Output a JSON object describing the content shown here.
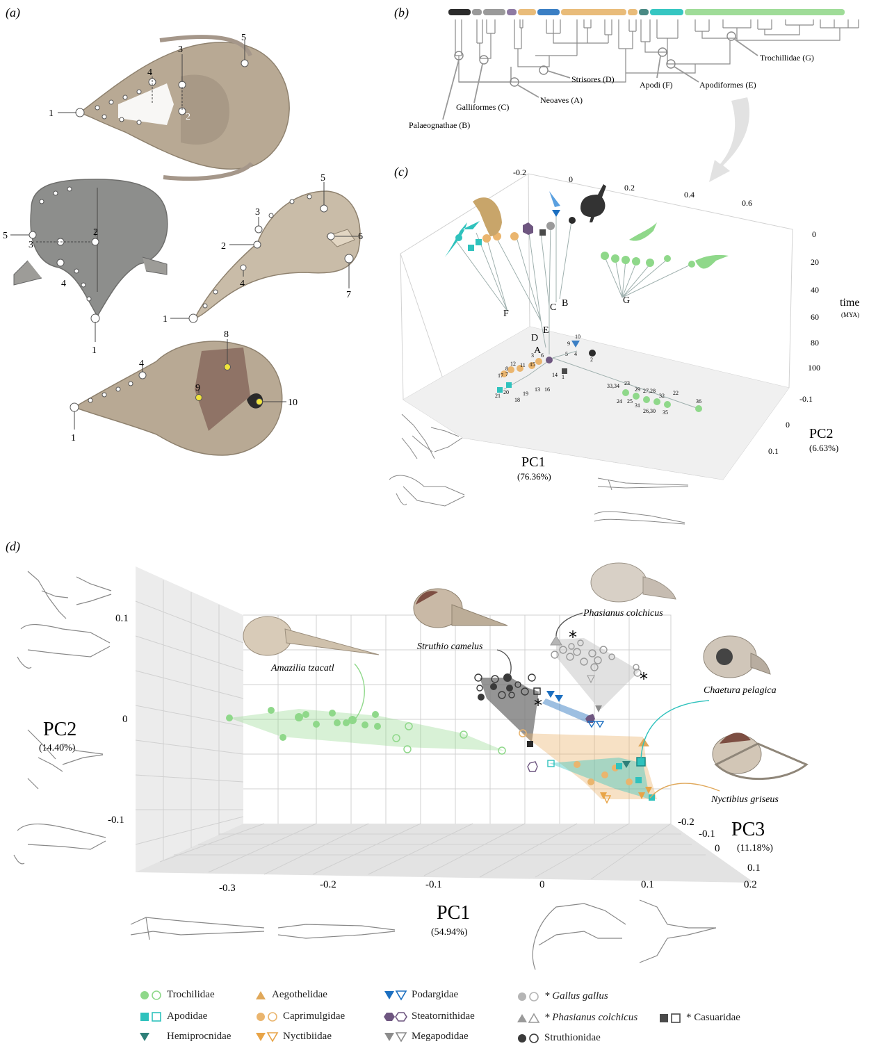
{
  "panels": {
    "a": "(a)",
    "b": "(b)",
    "c": "(c)",
    "d": "(d)"
  },
  "panel_a": {
    "landmarks_top": [
      "1",
      "2",
      "3",
      "4",
      "5"
    ],
    "landmarks_front": [
      "5",
      "3",
      "2",
      "4",
      "1"
    ],
    "landmarks_side": [
      "5",
      "3",
      "2",
      "6",
      "4",
      "7",
      "1"
    ],
    "landmarks_ventral": [
      "8",
      "4",
      "9",
      "10",
      "1"
    ]
  },
  "panel_b": {
    "clades": [
      {
        "label": "Palaeognathae (B)"
      },
      {
        "label": "Galliformes (C)"
      },
      {
        "label": "Neoaves (A)"
      },
      {
        "label": "Strisores (D)"
      },
      {
        "label": "Apodi (F)"
      },
      {
        "label": "Apodiformes (E)"
      },
      {
        "label": "Trochillidae (G)"
      }
    ],
    "bar_colors": [
      "#2b2b2b",
      "#9a9a9a",
      "#9a9a9a",
      "#8e7aa3",
      "#e9bc7a",
      "#3b7fc4",
      "#e9bc7a",
      "#e9bc7a",
      "#4a8a84",
      "#36c6c2",
      "#9fdc98"
    ]
  },
  "panel_c": {
    "pc1_label": "PC1",
    "pc1_pct": "(76.36%)",
    "pc2_label": "PC2",
    "pc2_pct": "(6.63%)",
    "time_label": "time",
    "time_unit": "(MYA)",
    "top_ticks": [
      "-0.2",
      "0",
      "0.2",
      "0.4",
      "0.6"
    ],
    "time_ticks": [
      "0",
      "20",
      "40",
      "60",
      "80",
      "100"
    ],
    "pc2_ticks": [
      "-0.1",
      "0",
      "0.1"
    ],
    "node_labels": [
      "F",
      "C",
      "B",
      "E",
      "D",
      "A",
      "G"
    ],
    "tip_numbers": [
      "10",
      "9",
      "3",
      "6",
      "5",
      "4",
      "2",
      "8",
      "12",
      "11",
      "15",
      "14",
      "1",
      "7",
      "17",
      "13",
      "16",
      "21",
      "20",
      "19",
      "18",
      "33,34",
      "23",
      "29",
      "27,28",
      "32",
      "22",
      "24",
      "25",
      "31",
      "26,30",
      "35",
      "36"
    ]
  },
  "panel_d": {
    "pc1_label": "PC1",
    "pc1_pct": "(54.94%)",
    "pc2_label": "PC2",
    "pc2_pct": "(14.40%)",
    "pc3_label": "PC3",
    "pc3_pct": "(11.18%)",
    "pc1_ticks": [
      "-0.3",
      "-0.2",
      "-0.1",
      "0",
      "0.1",
      "0.2"
    ],
    "pc2_ticks": [
      "0.1",
      "0",
      "-0.1"
    ],
    "pc3_ticks": [
      "-0.2",
      "-0.1",
      "0",
      "0.1"
    ],
    "species": {
      "amazilia": "Amazilia tzacatl",
      "struthio": "Struthio camelus",
      "phasianus": "Phasianus colchicus",
      "chaetura": "Chaetura pelagica",
      "nyctibius": "Nyctibius griseus"
    },
    "asterisk": "*"
  },
  "legend": {
    "trochilidae": "Trochilidae",
    "apodidae": "Apodidae",
    "hemiprocnidae": "Hemiprocnidae",
    "aegothelidae": "Aegothelidae",
    "caprimulgidae": "Caprimulgidae",
    "nyctibiidae": "Nyctibiidae",
    "podargidae": "Podargidae",
    "steatornithidae": "Steatornithidae",
    "megapodidae": "Megapodidae",
    "gallus": "* Gallus gallus",
    "phasianus": "* Phasianus colchicus",
    "casuaridae": "* Casuaridae",
    "struthionidae": "Struthionidae"
  },
  "colors": {
    "trochilidae": "#8fd88a",
    "apodidae": "#2fc2bd",
    "hemiprocnidae": "#2e7f78",
    "aegothelidae": "#e0a85a",
    "caprimulgidae": "#eab56e",
    "nyctibiidae": "#e8a447",
    "podargidae": "#1c6fc0",
    "steatornithidae": "#6e5680",
    "megapodidae": "#8c8c8c",
    "gallus": "#b5b5b5",
    "casuaridae": "#4a4a4a",
    "struthionidae": "#3a3a3a",
    "skull": "#c8b9a3"
  }
}
